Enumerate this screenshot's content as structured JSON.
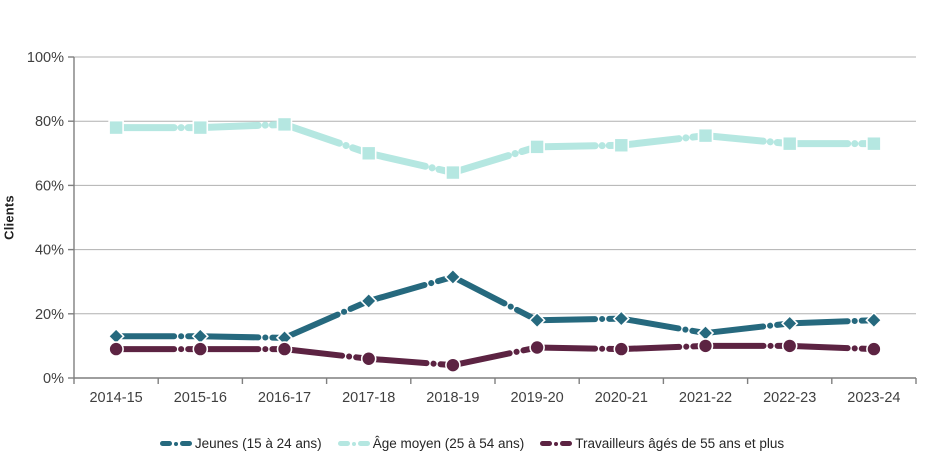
{
  "chart_data": {
    "type": "line",
    "title": "",
    "ylabel": "Clients",
    "categories": [
      "2014-15",
      "2015-16",
      "2016-17",
      "2017-18",
      "2018-19",
      "2019-20",
      "2020-21",
      "2021-22",
      "2022-23",
      "2023-24"
    ],
    "series": [
      {
        "name": "Jeunes (15 à 24 ans)",
        "color": "#26697e",
        "marker": "diamond",
        "values": [
          13,
          13,
          12.5,
          24,
          31.5,
          18,
          18.5,
          14,
          17,
          18
        ]
      },
      {
        "name": "Âge moyen (25 à 54 ans)",
        "color": "#b5e7e1",
        "marker": "square",
        "values": [
          78,
          78,
          79,
          70,
          64,
          72,
          72.5,
          75.5,
          73,
          73
        ]
      },
      {
        "name": "Travailleurs âgés de 55 ans et plus",
        "color": "#5c2342",
        "marker": "circle",
        "values": [
          9,
          9,
          9,
          6,
          4,
          9.5,
          9,
          10,
          10,
          9
        ]
      }
    ],
    "ylim": [
      0,
      100
    ],
    "yticks": [
      0,
      20,
      40,
      60,
      80,
      100
    ],
    "ytick_labels": [
      "0%",
      "20%",
      "40%",
      "60%",
      "80%",
      "100%"
    ],
    "grid": true,
    "legend_position": "bottom",
    "line_style": "dash-dot",
    "colors": {
      "axis": "#7f7f7f",
      "gridline": "#b0b0b0",
      "tick_text": "#3f3f3f",
      "background": "#ffffff"
    }
  }
}
